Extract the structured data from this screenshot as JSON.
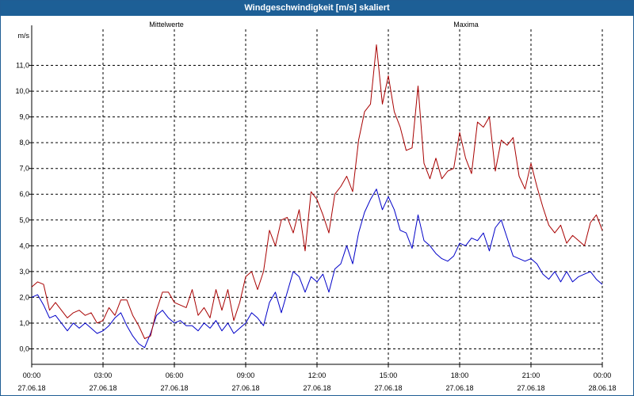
{
  "window": {
    "title": "Windgeschwindigkeit [m/s] skaliert"
  },
  "chart_data": {
    "type": "line",
    "title": "Windgeschwindigkeit [m/s] skaliert",
    "ylabel": "m/s",
    "ylim": [
      -0.6,
      12.4
    ],
    "y_ticks": [
      "0,0",
      "1,0",
      "2,0",
      "3,0",
      "4,0",
      "5,0",
      "6,0",
      "7,0",
      "8,0",
      "9,0",
      "10,0",
      "11,0"
    ],
    "x_range_hours": [
      0,
      24
    ],
    "x_ticks": [
      {
        "time": "00:00",
        "date": "27.06.18"
      },
      {
        "time": "03:00",
        "date": "27.06.18"
      },
      {
        "time": "06:00",
        "date": "27.06.18"
      },
      {
        "time": "09:00",
        "date": "27.06.18"
      },
      {
        "time": "12:00",
        "date": "27.06.18"
      },
      {
        "time": "15:00",
        "date": "27.06.18"
      },
      {
        "time": "18:00",
        "date": "27.06.18"
      },
      {
        "time": "21:00",
        "date": "27.06.18"
      },
      {
        "time": "00:00",
        "date": "28.06.18"
      }
    ],
    "grid": true,
    "series": [
      {
        "name": "Mittelwerte",
        "color": "#0000c8",
        "x": [
          0,
          0.25,
          0.5,
          0.75,
          1,
          1.25,
          1.5,
          1.75,
          2,
          2.25,
          2.5,
          2.75,
          3,
          3.25,
          3.5,
          3.75,
          4,
          4.25,
          4.5,
          4.75,
          5,
          5.25,
          5.5,
          5.75,
          6,
          6.25,
          6.5,
          6.75,
          7,
          7.25,
          7.5,
          7.75,
          8,
          8.25,
          8.5,
          8.75,
          9,
          9.25,
          9.5,
          9.75,
          10,
          10.25,
          10.5,
          10.75,
          11,
          11.25,
          11.5,
          11.75,
          12,
          12.25,
          12.5,
          12.75,
          13,
          13.25,
          13.5,
          13.75,
          14,
          14.25,
          14.5,
          14.75,
          15,
          15.25,
          15.5,
          15.75,
          16,
          16.25,
          16.5,
          16.75,
          17,
          17.25,
          17.5,
          17.75,
          18,
          18.25,
          18.5,
          18.75,
          19,
          19.25,
          19.5,
          19.75,
          20,
          20.25,
          20.5,
          20.75,
          21,
          21.25,
          21.5,
          21.75,
          22,
          22.25,
          22.5,
          22.75,
          23,
          23.25,
          23.5,
          23.75,
          24
        ],
        "values": [
          2.0,
          2.1,
          1.7,
          1.2,
          1.3,
          1.0,
          0.7,
          1.0,
          0.8,
          1.0,
          0.8,
          0.6,
          0.7,
          0.9,
          1.2,
          1.4,
          0.9,
          0.5,
          0.2,
          0.05,
          0.6,
          1.3,
          1.5,
          1.2,
          1.0,
          1.1,
          0.9,
          0.9,
          0.7,
          1.0,
          0.8,
          1.1,
          0.7,
          1.0,
          0.6,
          0.8,
          1.0,
          1.4,
          1.2,
          0.9,
          1.8,
          2.2,
          1.4,
          2.2,
          3.0,
          2.8,
          2.2,
          2.8,
          2.6,
          2.9,
          2.2,
          3.1,
          3.3,
          4.0,
          3.3,
          4.5,
          5.3,
          5.8,
          6.2,
          5.4,
          5.9,
          5.4,
          4.6,
          4.5,
          3.9,
          5.2,
          4.2,
          4.0,
          3.7,
          3.5,
          3.4,
          3.6,
          4.1,
          4.0,
          4.3,
          4.2,
          4.5,
          3.8,
          4.7,
          5.0,
          4.3,
          3.6,
          3.5,
          3.4,
          3.5,
          3.3,
          2.9,
          2.7,
          3.0,
          2.6,
          3.0,
          2.6,
          2.8,
          2.9,
          3.0,
          2.7,
          2.5
        ]
      },
      {
        "name": "Maxima",
        "color": "#a80000",
        "x": [
          0,
          0.25,
          0.5,
          0.75,
          1,
          1.25,
          1.5,
          1.75,
          2,
          2.25,
          2.5,
          2.75,
          3,
          3.25,
          3.5,
          3.75,
          4,
          4.25,
          4.5,
          4.75,
          5,
          5.25,
          5.5,
          5.75,
          6,
          6.25,
          6.5,
          6.75,
          7,
          7.25,
          7.5,
          7.75,
          8,
          8.25,
          8.5,
          8.75,
          9,
          9.25,
          9.5,
          9.75,
          10,
          10.25,
          10.5,
          10.75,
          11,
          11.25,
          11.5,
          11.75,
          12,
          12.25,
          12.5,
          12.75,
          13,
          13.25,
          13.5,
          13.75,
          14,
          14.25,
          14.5,
          14.75,
          15,
          15.25,
          15.5,
          15.75,
          16,
          16.25,
          16.5,
          16.75,
          17,
          17.25,
          17.5,
          17.75,
          18,
          18.25,
          18.5,
          18.75,
          19,
          19.25,
          19.5,
          19.75,
          20,
          20.25,
          20.5,
          20.75,
          21,
          21.25,
          21.5,
          21.75,
          22,
          22.25,
          22.5,
          22.75,
          23,
          23.25,
          23.5,
          23.75,
          24
        ],
        "values": [
          2.4,
          2.6,
          2.5,
          1.5,
          1.8,
          1.5,
          1.2,
          1.4,
          1.5,
          1.3,
          1.4,
          1.0,
          1.1,
          1.6,
          1.3,
          1.9,
          1.9,
          1.3,
          0.9,
          0.4,
          0.5,
          1.5,
          2.2,
          2.2,
          1.8,
          1.7,
          1.6,
          2.3,
          1.3,
          1.6,
          1.2,
          2.3,
          1.5,
          2.3,
          1.1,
          1.8,
          2.8,
          3.0,
          2.3,
          3.0,
          4.6,
          4.0,
          5.0,
          5.1,
          4.5,
          5.4,
          3.8,
          6.1,
          5.8,
          5.2,
          4.5,
          6.0,
          6.3,
          6.7,
          6.1,
          8.1,
          9.2,
          9.5,
          11.8,
          9.5,
          10.6,
          9.2,
          8.6,
          7.7,
          7.8,
          10.2,
          7.2,
          6.6,
          7.4,
          6.6,
          6.9,
          7.0,
          8.4,
          7.4,
          6.8,
          8.8,
          8.6,
          9.0,
          6.9,
          8.1,
          7.9,
          8.2,
          6.7,
          6.2,
          7.2,
          6.3,
          5.5,
          4.8,
          4.5,
          4.8,
          4.1,
          4.4,
          4.2,
          4.0,
          4.9,
          5.2,
          4.6
        ]
      }
    ]
  }
}
